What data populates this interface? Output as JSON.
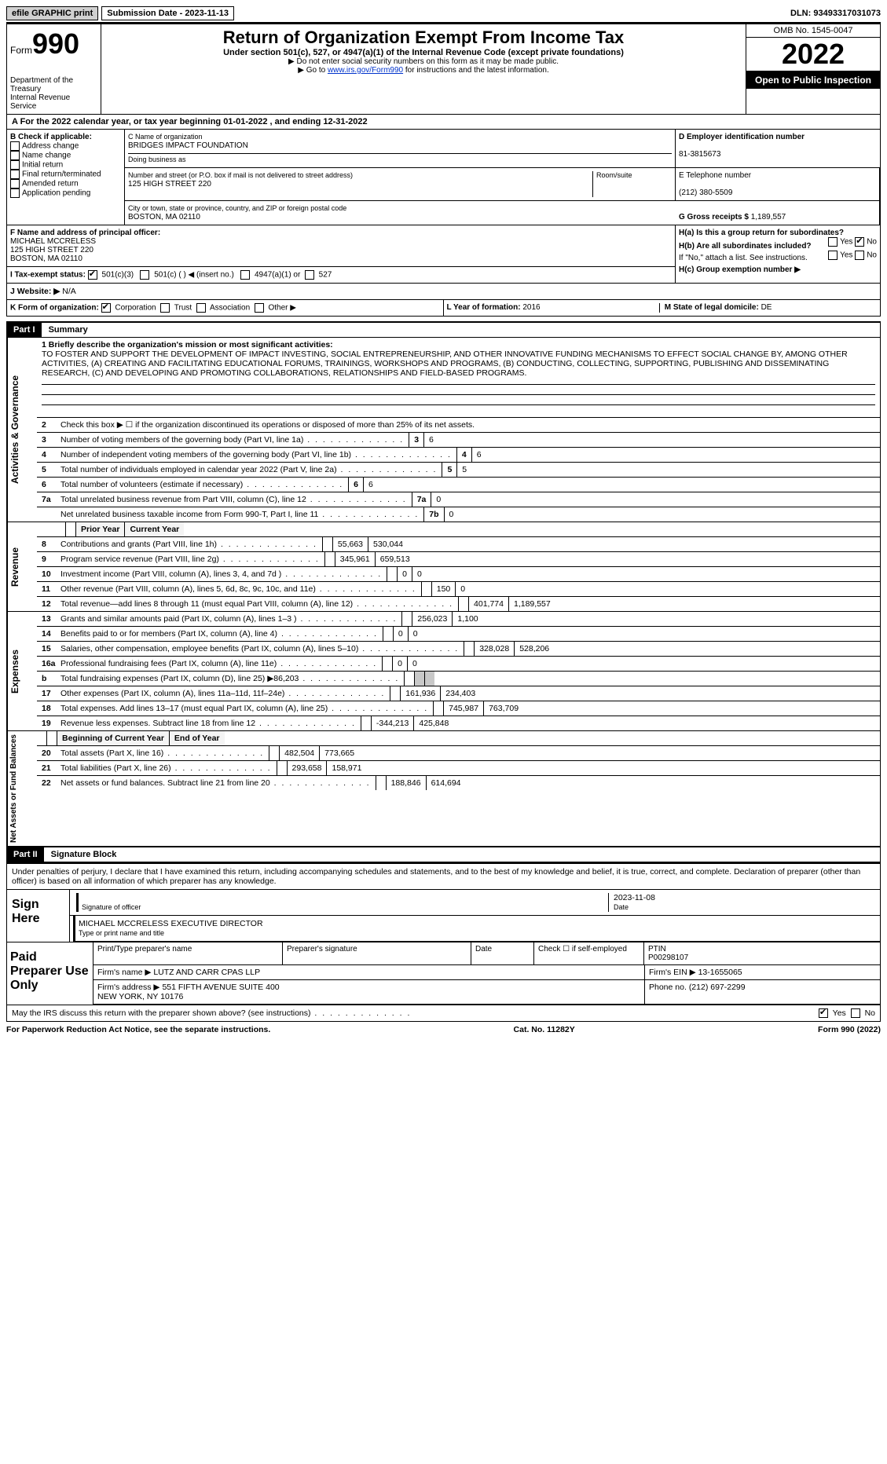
{
  "top": {
    "efile": "efile GRAPHIC print",
    "sub_label": "Submission Date - 2023-11-13",
    "dln": "DLN: 93493317031073"
  },
  "header": {
    "form_word": "Form",
    "form_num": "990",
    "dept": "Department of the Treasury",
    "irs": "Internal Revenue Service",
    "title": "Return of Organization Exempt From Income Tax",
    "sub": "Under section 501(c), 527, or 4947(a)(1) of the Internal Revenue Code (except private foundations)",
    "note1": "▶ Do not enter social security numbers on this form as it may be made public.",
    "note2_a": "▶ Go to ",
    "note2_link": "www.irs.gov/Form990",
    "note2_b": " for instructions and the latest information.",
    "omb": "OMB No. 1545-0047",
    "year": "2022",
    "inspect": "Open to Public Inspection"
  },
  "rowA": "A  For the 2022 calendar year, or tax year beginning 01-01-2022   , and ending 12-31-2022",
  "boxB": {
    "label": "B Check if applicable:",
    "items": [
      "Address change",
      "Name change",
      "Initial return",
      "Final return/terminated",
      "Amended return",
      "Application pending"
    ]
  },
  "boxC": {
    "name_lbl": "C Name of organization",
    "name": "BRIDGES IMPACT FOUNDATION",
    "dba_lbl": "Doing business as",
    "street_lbl": "Number and street (or P.O. box if mail is not delivered to street address)",
    "street": "125 HIGH STREET 220",
    "room_lbl": "Room/suite",
    "city_lbl": "City or town, state or province, country, and ZIP or foreign postal code",
    "city": "BOSTON, MA  02110"
  },
  "boxD": {
    "lbl": "D Employer identification number",
    "val": "81-3815673"
  },
  "boxE": {
    "lbl": "E Telephone number",
    "val": "(212) 380-5509"
  },
  "boxG": {
    "lbl": "G Gross receipts $",
    "val": "1,189,557"
  },
  "boxF": {
    "lbl": "F  Name and address of principal officer:",
    "name": "MICHAEL MCCRELESS",
    "addr1": "125 HIGH STREET 220",
    "addr2": "BOSTON, MA  02110"
  },
  "boxH": {
    "a": "H(a)  Is this a group return for subordinates?",
    "b": "H(b)  Are all subordinates included?",
    "note": "If \"No,\" attach a list. See instructions.",
    "c": "H(c)  Group exemption number ▶",
    "yes": "Yes",
    "no": "No"
  },
  "rowI": {
    "lbl": "I   Tax-exempt status:",
    "c3": "501(c)(3)",
    "c": "501(c) (  ) ◀ (insert no.)",
    "a1": "4947(a)(1) or",
    "s527": "527"
  },
  "rowJ": {
    "lbl": "J   Website: ▶",
    "val": "N/A"
  },
  "rowK": {
    "lbl": "K Form of organization:",
    "corp": "Corporation",
    "trust": "Trust",
    "assoc": "Association",
    "other": "Other ▶"
  },
  "rowL": {
    "lbl": "L Year of formation:",
    "val": "2016"
  },
  "rowM": {
    "lbl": "M State of legal domicile:",
    "val": "DE"
  },
  "part1": {
    "hdr": "Part I",
    "title": "Summary"
  },
  "summary": {
    "l1_lbl": "1  Briefly describe the organization's mission or most significant activities:",
    "l1_val": "TO FOSTER AND SUPPORT THE DEVELOPMENT OF IMPACT INVESTING, SOCIAL ENTREPRENEURSHIP, AND OTHER INNOVATIVE FUNDING MECHANISMS TO EFFECT SOCIAL CHANGE BY, AMONG OTHER ACTIVITIES, (A) CREATING AND FACILITATING EDUCATIONAL FORUMS, TRAININGS, WORKSHOPS AND PROGRAMS, (B) CONDUCTING, COLLECTING, SUPPORTING, PUBLISHING AND DISSEMINATING RESEARCH, (C) AND DEVELOPING AND PROMOTING COLLABORATIONS, RELATIONSHIPS AND FIELD-BASED PROGRAMS.",
    "l2": "Check this box ▶ ☐  if the organization discontinued its operations or disposed of more than 25% of its net assets.",
    "rows_single": [
      {
        "n": "3",
        "t": "Number of voting members of the governing body (Part VI, line 1a)",
        "b": "3",
        "v": "6"
      },
      {
        "n": "4",
        "t": "Number of independent voting members of the governing body (Part VI, line 1b)",
        "b": "4",
        "v": "6"
      },
      {
        "n": "5",
        "t": "Total number of individuals employed in calendar year 2022 (Part V, line 2a)",
        "b": "5",
        "v": "5"
      },
      {
        "n": "6",
        "t": "Total number of volunteers (estimate if necessary)",
        "b": "6",
        "v": "6"
      },
      {
        "n": "7a",
        "t": "Total unrelated business revenue from Part VIII, column (C), line 12",
        "b": "7a",
        "v": "0"
      },
      {
        "n": "",
        "t": "Net unrelated business taxable income from Form 990-T, Part I, line 11",
        "b": "7b",
        "v": "0"
      }
    ],
    "col_hdr_prior": "Prior Year",
    "col_hdr_curr": "Current Year",
    "revenue": [
      {
        "n": "8",
        "t": "Contributions and grants (Part VIII, line 1h)",
        "p": "55,663",
        "c": "530,044"
      },
      {
        "n": "9",
        "t": "Program service revenue (Part VIII, line 2g)",
        "p": "345,961",
        "c": "659,513"
      },
      {
        "n": "10",
        "t": "Investment income (Part VIII, column (A), lines 3, 4, and 7d )",
        "p": "0",
        "c": "0"
      },
      {
        "n": "11",
        "t": "Other revenue (Part VIII, column (A), lines 5, 6d, 8c, 9c, 10c, and 11e)",
        "p": "150",
        "c": "0"
      },
      {
        "n": "12",
        "t": "Total revenue—add lines 8 through 11 (must equal Part VIII, column (A), line 12)",
        "p": "401,774",
        "c": "1,189,557"
      }
    ],
    "expenses": [
      {
        "n": "13",
        "t": "Grants and similar amounts paid (Part IX, column (A), lines 1–3 )",
        "p": "256,023",
        "c": "1,100"
      },
      {
        "n": "14",
        "t": "Benefits paid to or for members (Part IX, column (A), line 4)",
        "p": "0",
        "c": "0"
      },
      {
        "n": "15",
        "t": "Salaries, other compensation, employee benefits (Part IX, column (A), lines 5–10)",
        "p": "328,028",
        "c": "528,206"
      },
      {
        "n": "16a",
        "t": "Professional fundraising fees (Part IX, column (A), line 11e)",
        "p": "0",
        "c": "0"
      },
      {
        "n": "b",
        "t": "Total fundraising expenses (Part IX, column (D), line 25) ▶86,203",
        "p": "shade",
        "c": "shade"
      },
      {
        "n": "17",
        "t": "Other expenses (Part IX, column (A), lines 11a–11d, 11f–24e)",
        "p": "161,936",
        "c": "234,403"
      },
      {
        "n": "18",
        "t": "Total expenses. Add lines 13–17 (must equal Part IX, column (A), line 25)",
        "p": "745,987",
        "c": "763,709"
      },
      {
        "n": "19",
        "t": "Revenue less expenses. Subtract line 18 from line 12",
        "p": "-344,213",
        "c": "425,848"
      }
    ],
    "col_hdr_beg": "Beginning of Current Year",
    "col_hdr_end": "End of Year",
    "netassets": [
      {
        "n": "20",
        "t": "Total assets (Part X, line 16)",
        "p": "482,504",
        "c": "773,665"
      },
      {
        "n": "21",
        "t": "Total liabilities (Part X, line 26)",
        "p": "293,658",
        "c": "158,971"
      },
      {
        "n": "22",
        "t": "Net assets or fund balances. Subtract line 21 from line 20",
        "p": "188,846",
        "c": "614,694"
      }
    ],
    "vlabels": {
      "ag": "Activities & Governance",
      "rev": "Revenue",
      "exp": "Expenses",
      "na": "Net Assets or Fund Balances"
    }
  },
  "part2": {
    "hdr": "Part II",
    "title": "Signature Block"
  },
  "sig": {
    "penalty": "Under penalties of perjury, I declare that I have examined this return, including accompanying schedules and statements, and to the best of my knowledge and belief, it is true, correct, and complete. Declaration of preparer (other than officer) is based on all information of which preparer has any knowledge.",
    "sign_here": "Sign Here",
    "sig_officer": "Signature of officer",
    "date": "Date",
    "date_val": "2023-11-08",
    "name_title": "MICHAEL MCCRELESS  EXECUTIVE DIRECTOR",
    "name_lbl": "Type or print name and title",
    "paid": "Paid Preparer Use Only",
    "pt_name": "Print/Type preparer's name",
    "pt_sig": "Preparer's signature",
    "pt_date": "Date",
    "pt_chk": "Check ☐ if self-employed",
    "ptin_lbl": "PTIN",
    "ptin": "P00298107",
    "firm_name_lbl": "Firm's name  ▶",
    "firm_name": "LUTZ AND CARR CPAS LLP",
    "firm_ein_lbl": "Firm's EIN ▶",
    "firm_ein": "13-1655065",
    "firm_addr_lbl": "Firm's address ▶",
    "firm_addr": "551 FIFTH AVENUE SUITE 400\nNEW YORK, NY  10176",
    "phone_lbl": "Phone no.",
    "phone": "(212) 697-2299",
    "may": "May the IRS discuss this return with the preparer shown above? (see instructions)",
    "yes": "Yes",
    "no": "No"
  },
  "footer": {
    "pra": "For Paperwork Reduction Act Notice, see the separate instructions.",
    "cat": "Cat. No. 11282Y",
    "form": "Form 990 (2022)"
  }
}
